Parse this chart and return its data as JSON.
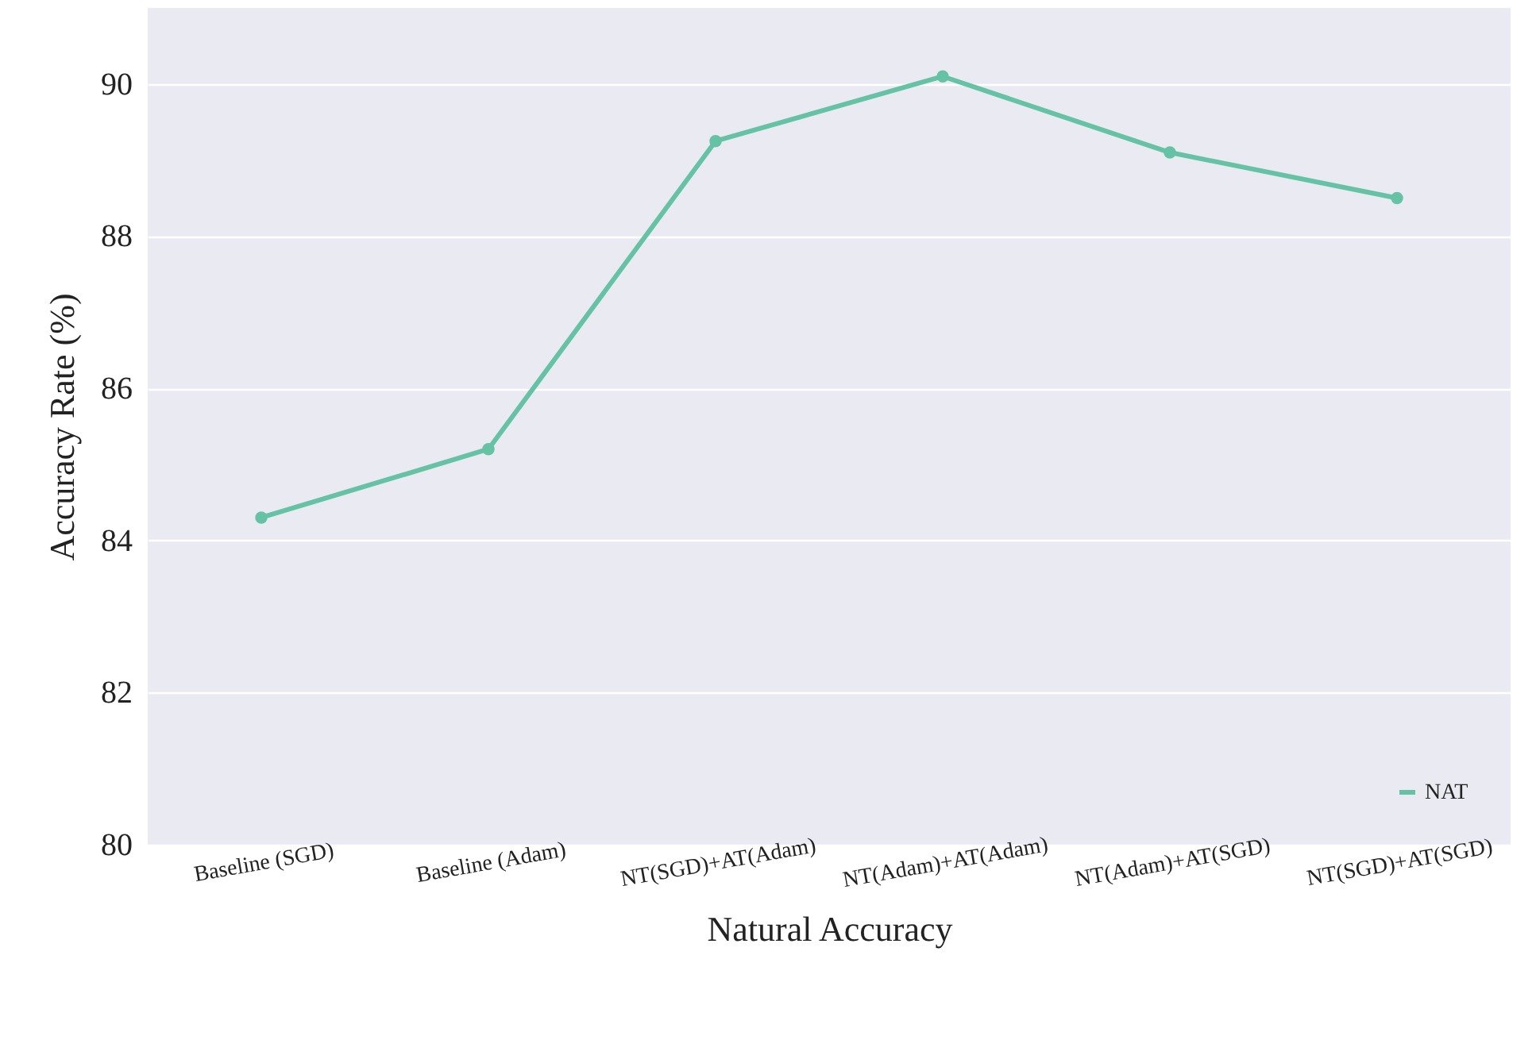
{
  "chart_data": {
    "type": "line",
    "xlabel": "Natural Accuracy",
    "ylabel": "Accuracy Rate (%)",
    "categories": [
      "Baseline (SGD)",
      "Baseline (Adam)",
      "NT(SGD)+AT(Adam)",
      "NT(Adam)+AT(Adam)",
      "NT(Adam)+AT(SGD)",
      "NT(SGD)+AT(SGD)"
    ],
    "series": [
      {
        "name": "NAT",
        "color": "#66c2a5",
        "values": [
          84.3,
          85.2,
          89.25,
          90.1,
          89.1,
          88.5
        ]
      }
    ],
    "ylim": [
      80,
      91
    ],
    "yticks": [
      80,
      82,
      84,
      86,
      88,
      90
    ],
    "grid": "y",
    "legend": "bottom right",
    "marker": "circle"
  }
}
